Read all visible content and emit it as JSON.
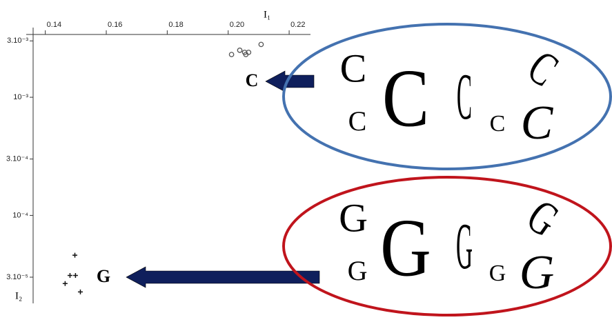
{
  "chart_data": {
    "type": "scatter",
    "x_label": "I₁",
    "y_label": "I₂",
    "xlim": [
      0.136,
      0.227
    ],
    "xticks": [
      {
        "value": 0.14,
        "label": "0.14"
      },
      {
        "value": 0.16,
        "label": "0.16"
      },
      {
        "value": 0.18,
        "label": "0.18"
      },
      {
        "value": 0.2,
        "label": "0.20"
      },
      {
        "value": 0.22,
        "label": "0.22"
      }
    ],
    "ylim": [
      1.8e-05,
      0.0034
    ],
    "log_y": true,
    "yticks": [
      {
        "value": 0.003,
        "label": "3.10⁻³"
      },
      {
        "value": 0.001,
        "label": "10⁻³"
      },
      {
        "value": 0.0003,
        "label": "3.10⁻⁴"
      },
      {
        "value": 0.0001,
        "label": "10⁻⁴"
      },
      {
        "value": 3e-05,
        "label": "3.10⁻⁵"
      }
    ],
    "series": [
      {
        "name": "C",
        "color": "#555555",
        "marker": "circle",
        "x": [
          0.2011,
          0.2038,
          0.2054,
          0.2067,
          0.2108,
          0.2058
        ],
        "values": [
          0.0023,
          0.0025,
          0.0024,
          0.0024,
          0.0028,
          0.0023
        ],
        "ellipse_color": "#4472b0",
        "letters": [
          "C",
          "C",
          "C",
          "C",
          "C",
          "C",
          "C"
        ]
      },
      {
        "name": "G",
        "color": "#111111",
        "marker": "cross",
        "x": [
          0.1497,
          0.1481,
          0.1499,
          0.1465,
          0.1515
        ],
        "values": [
          4.6e-05,
          3.1e-05,
          3.1e-05,
          2.65e-05,
          2.25e-05
        ],
        "ellipse_color": "#c0141c",
        "letters": [
          "G",
          "G",
          "G",
          "G",
          "G",
          "G",
          "G"
        ]
      }
    ]
  }
}
